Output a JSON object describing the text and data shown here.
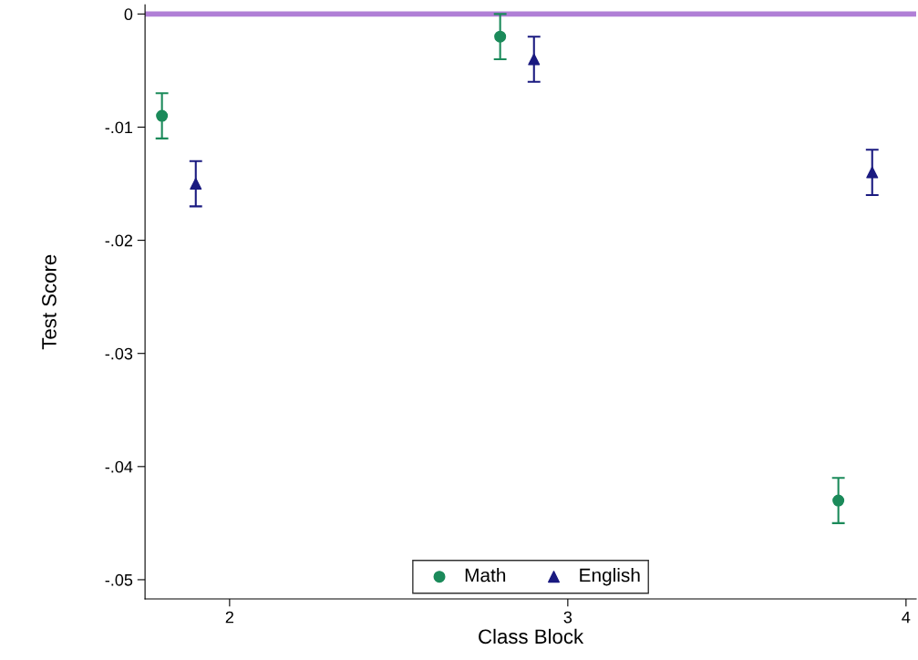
{
  "chart_data": {
    "type": "scatter",
    "xlabel": "Class Block",
    "ylabel": "Test Score",
    "xlim": [
      1.75,
      4.03
    ],
    "xticks": [
      2,
      3,
      4
    ],
    "ylim": [
      -0.0517,
      0.0008
    ],
    "yticks": [
      {
        "value": 0,
        "label": "0"
      },
      {
        "value": -0.01,
        "label": "-.01"
      },
      {
        "value": -0.02,
        "label": "-.02"
      },
      {
        "value": -0.03,
        "label": "-.03"
      },
      {
        "value": -0.04,
        "label": "-.04"
      },
      {
        "value": -0.05,
        "label": "-.05"
      }
    ],
    "series": [
      {
        "name": "Math",
        "color": "#1b8a5a",
        "marker": "circle",
        "x": [
          1.8,
          2.8,
          3.8
        ],
        "values": [
          -0.009,
          -0.002,
          -0.043
        ],
        "errors": [
          0.002,
          0.002,
          0.002
        ]
      },
      {
        "name": "English",
        "color": "#1a1a80",
        "marker": "triangle",
        "x": [
          1.9,
          2.9,
          3.9
        ],
        "values": [
          -0.015,
          -0.004,
          -0.014
        ],
        "errors": [
          0.002,
          0.002,
          0.002
        ]
      }
    ],
    "ref_lines": [
      {
        "axis": "y",
        "value": 0,
        "color": "#b07fd6",
        "line_style": "solid"
      }
    ],
    "legend": "bottom",
    "grid": false
  }
}
